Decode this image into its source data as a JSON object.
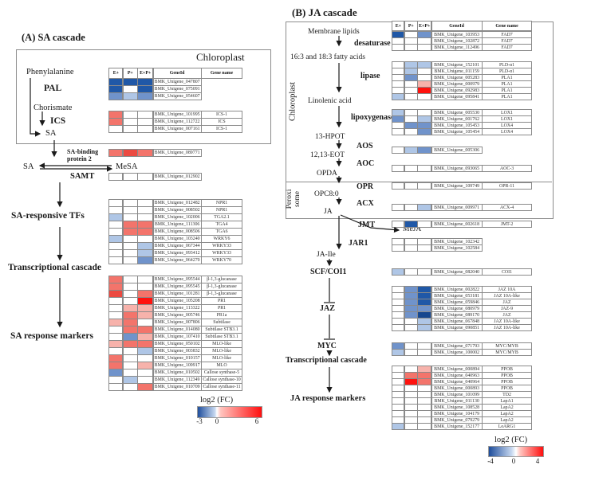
{
  "palette": {
    "b4": "#16478F",
    "b3": "#2058A7",
    "b2": "#7093CB",
    "b1": "#AFC6E6",
    "w": "#FFFFFF",
    "r1": "#F7B2AB",
    "r2": "#F3746B",
    "r3": "#EC4A41",
    "r4": "#FF120E"
  },
  "header": {
    "e": "E+",
    "p": "P+",
    "ep": "E+P+",
    "geneid": "GeneId",
    "genename": "Gene name"
  },
  "panelA": {
    "title": "(A) SA cascade",
    "compartment": "Chloroplast",
    "nodes": {
      "phenylalanine": "Phenylalanine",
      "pal": "PAL",
      "chorismate": "Chorismate",
      "ics": "ICS",
      "sa1": "SA",
      "sabp": "SA-binding\nprotein 2",
      "sa2": "SA",
      "mesa": "MeSA",
      "samt": "SAMT",
      "tfs": "SA-responsive TFs",
      "cascade": "Transcriptional cascade",
      "markers": "SA response markers"
    },
    "colorbar": {
      "title": "log2 (FC)",
      "ticks": [
        "-3",
        "0",
        "6"
      ]
    },
    "tables": {
      "pal": {
        "rows": [
          {
            "c": [
              "b3",
              "b3",
              "b3"
            ],
            "id": "BMK_Unigene_047807",
            "name": null
          },
          {
            "c": [
              "b3",
              "w",
              "b3"
            ],
            "id": "BMK_Unigene_075091",
            "name": null
          },
          {
            "c": [
              "b2",
              "b1",
              "b2"
            ],
            "id": "BMK_Unigene_054607",
            "name": null
          }
        ]
      },
      "ics": {
        "rows": [
          {
            "c": [
              "r2",
              "w",
              "w"
            ],
            "id": "BMK_Unigene_101995",
            "name": "ICS-1"
          },
          {
            "c": [
              "r2",
              "w",
              "w"
            ],
            "id": "BMK_Unigene_112722",
            "name": "ICS"
          },
          {
            "c": [
              "w",
              "w",
              "w"
            ],
            "id": "BMK_Unigene_007161",
            "name": "ICS-1"
          }
        ]
      },
      "sabp2": {
        "rows": [
          {
            "c": [
              "r2",
              "r3",
              "r2"
            ],
            "id": "BMK_Unigene_089771",
            "name": null
          }
        ]
      },
      "samt": {
        "rows": [
          {
            "c": [
              "w",
              "w",
              "w"
            ],
            "id": "BMK_Unigene_012902",
            "name": null
          }
        ]
      },
      "tfs": {
        "rows": [
          {
            "c": [
              "w",
              "w",
              "w"
            ],
            "id": "BMK_Unigene_012482",
            "name": "NPR1"
          },
          {
            "c": [
              "w",
              "w",
              "w"
            ],
            "id": "BMK_Unigene_008502",
            "name": "NPR1"
          },
          {
            "c": [
              "b1",
              "w",
              "w"
            ],
            "id": "BMK_Unigene_102006",
            "name": "TGA2.1"
          },
          {
            "c": [
              "w",
              "r2",
              "r2"
            ],
            "id": "BMK_Unigene_111306",
            "name": "TGA4"
          },
          {
            "c": [
              "w",
              "r2",
              "r2"
            ],
            "id": "BMK_Unigene_008506",
            "name": "TGA6"
          },
          {
            "c": [
              "b1",
              "w",
              "w"
            ],
            "id": "BMK_Unigene_103240",
            "name": "WRKY6"
          },
          {
            "c": [
              "w",
              "w",
              "b1"
            ],
            "id": "BMK_Unigene_067344",
            "name": "WRKY33"
          },
          {
            "c": [
              "w",
              "w",
              "b1"
            ],
            "id": "BMK_Unigene_093412",
            "name": "WRKY33"
          },
          {
            "c": [
              "w",
              "w",
              "b2"
            ],
            "id": "BMK_Unigene_064270",
            "name": "WRKY70"
          }
        ]
      },
      "markers": {
        "rows": [
          {
            "c": [
              "r2",
              "w",
              "w"
            ],
            "id": "BMK_Unigene_095544",
            "name": "β-1,3-glucanase"
          },
          {
            "c": [
              "r2",
              "w",
              "w"
            ],
            "id": "BMK_Unigene_095545",
            "name": "β-1,3-glucanase"
          },
          {
            "c": [
              "r3",
              "w",
              "r2"
            ],
            "id": "BMK_Unigene_101281",
            "name": "β-1,3-glucanase"
          },
          {
            "c": [
              "w",
              "w",
              "r4"
            ],
            "id": "BMK_Unigene_105208",
            "name": "PR1"
          },
          {
            "c": [
              "w",
              "r1",
              "r1"
            ],
            "id": "BMK_Unigene_113322",
            "name": "PR1"
          },
          {
            "c": [
              "w",
              "r2",
              "r1"
            ],
            "id": "BMK_Unigene_005746",
            "name": "PR1a"
          },
          {
            "c": [
              "r1",
              "r2",
              "w"
            ],
            "id": "BMK_Unigene_007806",
            "name": "Subtilase"
          },
          {
            "c": [
              "w",
              "r2",
              "r2"
            ],
            "id": "BMK_Unigene_014080",
            "name": "Subtilase STB3.1"
          },
          {
            "c": [
              "w",
              "b2",
              "r1"
            ],
            "id": "BMK_Unigene_107410",
            "name": "Subtilase STB3.1"
          },
          {
            "c": [
              "r1",
              "r2",
              "r2"
            ],
            "id": "BMK_Unigene_050102",
            "name": "MLO-like"
          },
          {
            "c": [
              "w",
              "w",
              "b1"
            ],
            "id": "BMK_Unigene_003832",
            "name": "MLO-like"
          },
          {
            "c": [
              "r2",
              "w",
              "w"
            ],
            "id": "BMK_Unigene_010157",
            "name": "MLO-like"
          },
          {
            "c": [
              "r2",
              "w",
              "r1"
            ],
            "id": "BMK_Unigene_109917",
            "name": "MLO"
          },
          {
            "c": [
              "b2",
              "w",
              "w"
            ],
            "id": "BMK_Unigene_010502",
            "name": "Callose synthase-5"
          },
          {
            "c": [
              "w",
              "b1",
              "w"
            ],
            "id": "BMK_Unigene_112349",
            "name": "Callose synthase-10"
          },
          {
            "c": [
              "w",
              "w",
              "r2"
            ],
            "id": "BMK_Unigene_010709",
            "name": "Callose synthase-11"
          }
        ]
      }
    }
  },
  "panelB": {
    "title": "(B) JA cascade",
    "compartment1": "Chloroplast",
    "compartment2": "Peroxi\nsome",
    "nodes": {
      "membrane_lipids": "Membrane lipids",
      "desaturase": "desaturase",
      "fatty_acids": "16:3 and 18:3 fatty acids",
      "lipase": "lipase",
      "linolenic": "Linolenic acid",
      "lipoxygenase": "lipoxygenase",
      "hpot": "13-HPOT",
      "aos": "AOS",
      "eot": "12,13-EOT",
      "aoc": "AOC",
      "opda": "OPDA",
      "opr": "OPR",
      "opc": "OPC8:0",
      "acx": "ACX",
      "ja": "JA",
      "jmt": "JMT",
      "meja": "MeJA",
      "jar1": "JAR1",
      "jaile": "JA-Ile",
      "scfcoi1": "SCF/COI1",
      "jaz": "JAZ",
      "myc": "MYC",
      "cascade": "Transcriptional cascade",
      "markers": "JA response markers"
    },
    "colorbar": {
      "title": "log2 (FC)",
      "ticks": [
        "-4",
        "0",
        "4"
      ]
    },
    "tables": {
      "desaturase": {
        "rows": [
          {
            "c": [
              "b3",
              "w",
              "b2"
            ],
            "id": "BMK_Unigene_103953",
            "name": "FAD7"
          },
          {
            "c": [
              "w",
              "w",
              "w"
            ],
            "id": "BMK_Unigene_102872",
            "name": "FAD7"
          },
          {
            "c": [
              "w",
              "w",
              "w"
            ],
            "id": "BMK_Unigene_112496",
            "name": "FAD7"
          }
        ]
      },
      "lipase": {
        "rows": [
          {
            "c": [
              "w",
              "b1",
              "b1"
            ],
            "id": "BMK_Unigene_152101",
            "name": "PLD-α1"
          },
          {
            "c": [
              "w",
              "b1",
              "w"
            ],
            "id": "BMK_Unigene_011159",
            "name": "PLD-α1"
          },
          {
            "c": [
              "w",
              "b2",
              "w"
            ],
            "id": "BMK_Unigene_005283",
            "name": "PLA1"
          },
          {
            "c": [
              "w",
              "w",
              "r1"
            ],
            "id": "BMK_Unigene_000979",
            "name": "PLA1"
          },
          {
            "c": [
              "w",
              "w",
              "r4"
            ],
            "id": "BMK_Unigene_092983",
            "name": "PLA1"
          },
          {
            "c": [
              "b1",
              "w",
              "w"
            ],
            "id": "BMK_Unigene_095841",
            "name": "PLA1"
          }
        ]
      },
      "lipoxygenase": {
        "rows": [
          {
            "c": [
              "b1",
              "w",
              "w"
            ],
            "id": "BMK_Unigene_005530",
            "name": "LOX1"
          },
          {
            "c": [
              "b2",
              "w",
              "b1"
            ],
            "id": "BMK_Unigene_001762",
            "name": "LOX1"
          },
          {
            "c": [
              "w",
              "b2",
              "b2"
            ],
            "id": "BMK_Unigene_105453",
            "name": "LOX4"
          },
          {
            "c": [
              "w",
              "w",
              "b2"
            ],
            "id": "BMK_Unigene_105454",
            "name": "LOX4"
          }
        ]
      },
      "aos": {
        "rows": [
          {
            "c": [
              "w",
              "b1",
              "b2"
            ],
            "id": "BMK_Unigene_005306",
            "name": null
          }
        ]
      },
      "aoc": {
        "rows": [
          {
            "c": [
              "w",
              "w",
              "w"
            ],
            "id": "BMK_Unigene_093065",
            "name": "AOC-3"
          }
        ]
      },
      "opr": {
        "rows": [
          {
            "c": [
              "w",
              "w",
              "w"
            ],
            "id": "BMK_Unigene_109749",
            "name": "OPR-11"
          }
        ]
      },
      "acx": {
        "rows": [
          {
            "c": [
              "w",
              "w",
              "b1"
            ],
            "id": "BMK_Unigene_009971",
            "name": "ACX-4"
          }
        ]
      },
      "jmt": {
        "rows": [
          {
            "c": [
              "w",
              "b3",
              "w"
            ],
            "id": "BMK_Unigene_002618",
            "name": "JMT-2"
          }
        ]
      },
      "jar1": {
        "rows": [
          {
            "c": [
              "w",
              "w",
              "w"
            ],
            "id": "BMK_Unigene_102342",
            "name": null
          },
          {
            "c": [
              "w",
              "w",
              "w"
            ],
            "id": "BMK_Unigene_102584",
            "name": null
          }
        ]
      },
      "coi1": {
        "rows": [
          {
            "c": [
              "b1",
              "w",
              "w"
            ],
            "id": "BMK_Unigene_082040",
            "name": "COI1"
          }
        ]
      },
      "jaz": {
        "rows": [
          {
            "c": [
              "w",
              "b2",
              "b3"
            ],
            "id": "BMK_Unigene_002822",
            "name": "JAZ 10A"
          },
          {
            "c": [
              "w",
              "b2",
              "b3"
            ],
            "id": "BMK_Unigene_053181",
            "name": "JAZ 10A-like"
          },
          {
            "c": [
              "w",
              "b2",
              "b3"
            ],
            "id": "BMK_Unigene_059846",
            "name": "JAZ"
          },
          {
            "c": [
              "w",
              "b2",
              "b2"
            ],
            "id": "BMK_Unigene_080979",
            "name": "JAZ-9"
          },
          {
            "c": [
              "w",
              "b2",
              "b4"
            ],
            "id": "BMK_Unigene_089170",
            "name": "JAZ"
          },
          {
            "c": [
              "w",
              "w",
              "b1"
            ],
            "id": "BMK_Unigene_067848",
            "name": "JAZ 10A-like"
          },
          {
            "c": [
              "w",
              "w",
              "b1"
            ],
            "id": "BMK_Unigene_090851",
            "name": "JAZ 10A-like"
          }
        ]
      },
      "myc": {
        "rows": [
          {
            "c": [
              "b2",
              "w",
              "w"
            ],
            "id": "BMK_Unigene_071793",
            "name": "MYC/MYB"
          },
          {
            "c": [
              "b1",
              "w",
              "w"
            ],
            "id": "BMK_Unigene_100002",
            "name": "MYC/MYB"
          }
        ]
      },
      "markers": {
        "rows": [
          {
            "c": [
              "w",
              "w",
              "r1"
            ],
            "id": "BMK_Unigene_000894",
            "name": "PPOB"
          },
          {
            "c": [
              "w",
              "r2",
              "r2"
            ],
            "id": "BMK_Unigene_040963",
            "name": "PPOB"
          },
          {
            "c": [
              "w",
              "r4",
              "r2"
            ],
            "id": "BMK_Unigene_040964",
            "name": "PPOB"
          },
          {
            "c": [
              "w",
              "w",
              "w"
            ],
            "id": "BMK_Unigene_000893",
            "name": "PPOB"
          },
          {
            "c": [
              "w",
              "w",
              "w"
            ],
            "id": "BMK_Unigene_101099",
            "name": "TD2"
          },
          {
            "c": [
              "w",
              "w",
              "w"
            ],
            "id": "BMK_Unigene_011130",
            "name": "LapA1"
          },
          {
            "c": [
              "w",
              "w",
              "w"
            ],
            "id": "BMK_Unigene_108528",
            "name": "LapA2"
          },
          {
            "c": [
              "w",
              "w",
              "w"
            ],
            "id": "BMK_Unigene_104179",
            "name": "LapA2"
          },
          {
            "c": [
              "w",
              "w",
              "w"
            ],
            "id": "BMK_Unigene_079279",
            "name": "LapA2"
          },
          {
            "c": [
              "b1",
              "w",
              "w"
            ],
            "id": "BMK_Unigene_152177",
            "name": "LeARG1"
          }
        ]
      }
    }
  }
}
